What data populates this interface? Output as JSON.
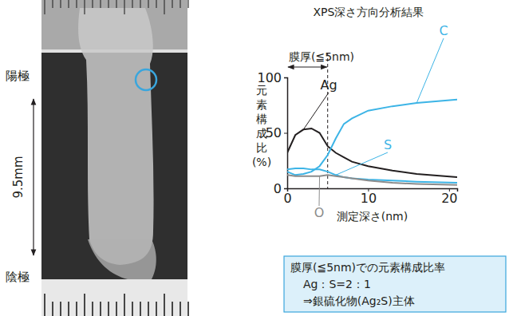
{
  "photo": {
    "anode": "陽極",
    "cathode": "陰極",
    "gap": "9.5mm"
  },
  "chart_data": {
    "type": "line",
    "title": "XPS深さ方向分析結果",
    "x_label": "測定深さ(nm)",
    "y_label": "元素構成比(%)",
    "x": [
      0,
      1,
      2,
      3,
      4,
      5,
      6,
      7,
      8,
      10,
      13,
      16,
      21
    ],
    "series": [
      {
        "name": "Ag",
        "color": "#231f20",
        "values": [
          32,
          48,
          53,
          54,
          50,
          38,
          32,
          28,
          24,
          20,
          16,
          13,
          10
        ]
      },
      {
        "name": "C",
        "color": "#3cb4e6",
        "values": [
          15,
          12,
          13,
          15,
          20,
          30,
          45,
          58,
          63,
          70,
          74,
          77,
          80
        ]
      },
      {
        "name": "S",
        "color": "#3cb4e6",
        "values": [
          17,
          18,
          18,
          17,
          17,
          15,
          12,
          10,
          9,
          8,
          7,
          6,
          5
        ]
      },
      {
        "name": "O",
        "color": "#8c8c8c",
        "values": [
          12,
          11,
          11,
          11,
          11,
          12,
          11,
          10,
          9,
          7,
          5,
          4,
          3
        ]
      }
    ],
    "xlim": [
      0,
      21
    ],
    "xticks": [
      0,
      10,
      20
    ],
    "ylim": [
      0,
      100
    ],
    "yticks": [
      0,
      50,
      100
    ],
    "grid": false,
    "film": {
      "label": "膜厚(≦5nm)",
      "span": [
        0,
        5
      ]
    },
    "note": [
      "膜厚(≦5nm)での元素構成比率",
      "Ag：S=2：1",
      "⇒銀硫化物(Ag₂S)主体"
    ]
  }
}
